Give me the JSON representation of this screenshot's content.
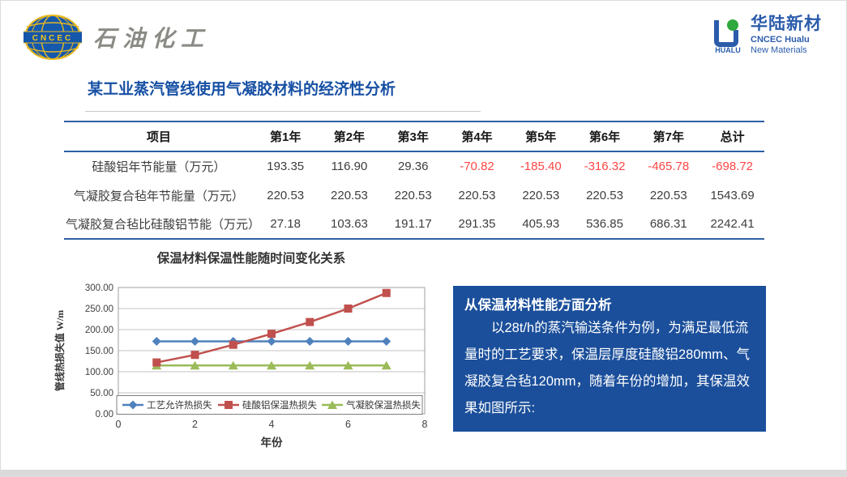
{
  "brand": {
    "left_logo": {
      "acronym": "CNCEC",
      "text": "石油化工"
    },
    "right_logo": {
      "glyph_caption": "HUALU",
      "name_cn": "华陆新材",
      "name_en_line1": "CNCEC Hualu",
      "name_en_line2": "New Materials",
      "blue": "#2b5cab",
      "green": "#2fa83c"
    }
  },
  "page": {
    "title": "某工业蒸汽管线使用气凝胶材料的经济性分析",
    "title_color": "#1750a4"
  },
  "table": {
    "columns": [
      "项目",
      "第1年",
      "第2年",
      "第3年",
      "第4年",
      "第5年",
      "第6年",
      "第7年",
      "总计"
    ],
    "rows": [
      {
        "label": "硅酸铝年节能量（万元）",
        "values": [
          "193.35",
          "116.90",
          "29.36",
          "-70.82",
          "-185.40",
          "-316.32",
          "-465.78",
          "-698.72"
        ]
      },
      {
        "label": "气凝胶复合毡年节能量（万元）",
        "values": [
          "220.53",
          "220.53",
          "220.53",
          "220.53",
          "220.53",
          "220.53",
          "220.53",
          "1543.69"
        ]
      },
      {
        "label": "气凝胶复合毡比硅酸铝节能（万元）",
        "values": [
          "27.18",
          "103.63",
          "191.17",
          "291.35",
          "405.93",
          "536.85",
          "686.31",
          "2242.41"
        ]
      }
    ],
    "negative_color": "#fe4545",
    "rule_color": "#2e5fa3"
  },
  "chart_data": {
    "type": "line",
    "title": "保温材料保温性能随时间变化关系",
    "xlabel": "年份",
    "ylabel": "管线热损失值 W/m",
    "x": [
      1,
      2,
      3,
      4,
      5,
      6,
      7
    ],
    "xlim": [
      0,
      8
    ],
    "xticks": [
      0,
      2,
      4,
      6,
      8
    ],
    "ylim": [
      0,
      300
    ],
    "ytick_step": 50,
    "grid": true,
    "legend_position": "bottom-inside",
    "series": [
      {
        "name": "工艺允许热损失",
        "marker": "diamond",
        "color": "#4f81bd",
        "values": [
          172,
          172,
          172,
          172,
          172,
          172,
          172
        ]
      },
      {
        "name": "硅酸铝保温热损失",
        "marker": "square",
        "color": "#c0504d",
        "values": [
          122,
          140,
          164,
          190,
          218,
          250,
          287
        ]
      },
      {
        "name": "气凝胶保温热损失",
        "marker": "triangle",
        "color": "#9bbb59",
        "values": [
          115,
          115,
          115,
          115,
          115,
          115,
          115
        ]
      }
    ]
  },
  "analysis_box": {
    "heading": "从保温材料性能方面分析",
    "body": "以28t/h的蒸汽输送条件为例，为满足最低流量时的工艺要求，保温层厚度硅酸铝280mm、气凝胶复合毡120mm，随着年份的增加，其保温效果如图所示:",
    "bg_color": "#1b4f9b"
  }
}
